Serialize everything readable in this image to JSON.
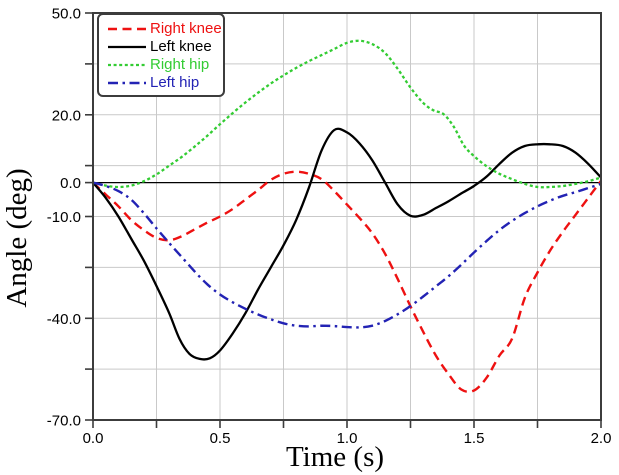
{
  "figure": {
    "background": "#ffffff",
    "frame_color": "#3c3c3c",
    "grid_color": "#c9c9c9",
    "zero_line_color": "#000000"
  },
  "chart_data": {
    "type": "line",
    "title": "",
    "xlabel": "Time (s)",
    "ylabel": "Angle (deg)",
    "xlim": [
      0,
      2
    ],
    "ylim": [
      -70,
      50
    ],
    "grid": "on",
    "legend_position": "top-left",
    "x_ticks": [
      {
        "v": 0,
        "label": "0.0"
      },
      {
        "v": 0.25,
        "label": ""
      },
      {
        "v": 0.5,
        "label": "0.5"
      },
      {
        "v": 0.75,
        "label": ""
      },
      {
        "v": 1,
        "label": "1.0"
      },
      {
        "v": 1.25,
        "label": ""
      },
      {
        "v": 1.5,
        "label": "1.5"
      },
      {
        "v": 1.75,
        "label": ""
      },
      {
        "v": 2,
        "label": "2.0"
      }
    ],
    "y_ticks": [
      {
        "v": 50,
        "label": "50.0"
      },
      {
        "v": 35,
        "label": ""
      },
      {
        "v": 20,
        "label": "20.0"
      },
      {
        "v": 5,
        "label": ""
      },
      {
        "v": 0,
        "label": "0.0"
      },
      {
        "v": -10,
        "label": "-10.0"
      },
      {
        "v": -25,
        "label": ""
      },
      {
        "v": -40,
        "label": "-40.0"
      },
      {
        "v": -55,
        "label": ""
      },
      {
        "v": -70,
        "label": "-70.0"
      }
    ],
    "x_grid": [
      0.25,
      0.5,
      0.75,
      1,
      1.25,
      1.5,
      1.75
    ],
    "y_grid": [
      35,
      20,
      5,
      -10,
      -25,
      -40,
      -55
    ],
    "zero_line": 0,
    "series": [
      {
        "name": "Right knee",
        "color": "#ee1111",
        "dash": "9 5.5",
        "width": 2.4,
        "points": [
          [
            0,
            0
          ],
          [
            0.05,
            -3.5
          ],
          [
            0.1,
            -7
          ],
          [
            0.15,
            -11
          ],
          [
            0.2,
            -14
          ],
          [
            0.25,
            -16.3
          ],
          [
            0.3,
            -17
          ],
          [
            0.35,
            -15.8
          ],
          [
            0.4,
            -13.8
          ],
          [
            0.45,
            -11.8
          ],
          [
            0.5,
            -10
          ],
          [
            0.55,
            -7.8
          ],
          [
            0.6,
            -5
          ],
          [
            0.65,
            -2.2
          ],
          [
            0.7,
            0.8
          ],
          [
            0.75,
            2.6
          ],
          [
            0.8,
            3.2
          ],
          [
            0.85,
            2.6
          ],
          [
            0.9,
            1
          ],
          [
            0.95,
            -2.5
          ],
          [
            1.0,
            -6.5
          ],
          [
            1.05,
            -10.5
          ],
          [
            1.1,
            -15
          ],
          [
            1.15,
            -21
          ],
          [
            1.2,
            -28.5
          ],
          [
            1.25,
            -36.5
          ],
          [
            1.3,
            -44
          ],
          [
            1.35,
            -51
          ],
          [
            1.4,
            -56.5
          ],
          [
            1.45,
            -61
          ],
          [
            1.5,
            -61.3
          ],
          [
            1.55,
            -57.5
          ],
          [
            1.6,
            -51
          ],
          [
            1.65,
            -46
          ],
          [
            1.7,
            -34
          ],
          [
            1.75,
            -26.5
          ],
          [
            1.8,
            -20
          ],
          [
            1.85,
            -14.5
          ],
          [
            1.9,
            -9.5
          ],
          [
            1.95,
            -4.5
          ],
          [
            2.0,
            0.5
          ]
        ]
      },
      {
        "name": "Left knee",
        "color": "#000000",
        "dash": "",
        "width": 2.3,
        "points": [
          [
            0,
            0
          ],
          [
            0.05,
            -4.5
          ],
          [
            0.1,
            -10
          ],
          [
            0.15,
            -16.5
          ],
          [
            0.2,
            -23
          ],
          [
            0.25,
            -30.5
          ],
          [
            0.3,
            -38.5
          ],
          [
            0.34,
            -46
          ],
          [
            0.38,
            -50.5
          ],
          [
            0.42,
            -52
          ],
          [
            0.46,
            -51.8
          ],
          [
            0.5,
            -49.5
          ],
          [
            0.55,
            -44.5
          ],
          [
            0.6,
            -38.5
          ],
          [
            0.65,
            -31.5
          ],
          [
            0.7,
            -25
          ],
          [
            0.75,
            -18.5
          ],
          [
            0.8,
            -11
          ],
          [
            0.85,
            -1.5
          ],
          [
            0.9,
            9.5
          ],
          [
            0.95,
            15.5
          ],
          [
            1.0,
            14.8
          ],
          [
            1.05,
            11.5
          ],
          [
            1.1,
            6.5
          ],
          [
            1.15,
            0
          ],
          [
            1.2,
            -6.5
          ],
          [
            1.25,
            -9.8
          ],
          [
            1.3,
            -9.5
          ],
          [
            1.35,
            -7.5
          ],
          [
            1.4,
            -5.5
          ],
          [
            1.45,
            -3.2
          ],
          [
            1.5,
            -1
          ],
          [
            1.55,
            1.8
          ],
          [
            1.6,
            5.5
          ],
          [
            1.65,
            8.8
          ],
          [
            1.7,
            10.8
          ],
          [
            1.75,
            11.3
          ],
          [
            1.8,
            11.3
          ],
          [
            1.85,
            10.8
          ],
          [
            1.9,
            8.8
          ],
          [
            1.95,
            5.5
          ],
          [
            2.0,
            1.5
          ]
        ]
      },
      {
        "name": "Right hip",
        "color": "#33cc33",
        "dash": "3 2.6",
        "width": 2.3,
        "points": [
          [
            0,
            0
          ],
          [
            0.05,
            -0.9
          ],
          [
            0.1,
            -1.3
          ],
          [
            0.15,
            -0.9
          ],
          [
            0.2,
            0.4
          ],
          [
            0.25,
            2.4
          ],
          [
            0.3,
            5
          ],
          [
            0.35,
            7.6
          ],
          [
            0.4,
            10.6
          ],
          [
            0.45,
            13.8
          ],
          [
            0.5,
            17.2
          ],
          [
            0.55,
            20.5
          ],
          [
            0.6,
            23.6
          ],
          [
            0.65,
            26.5
          ],
          [
            0.7,
            29.2
          ],
          [
            0.75,
            31.6
          ],
          [
            0.8,
            33.8
          ],
          [
            0.85,
            35.8
          ],
          [
            0.9,
            37.6
          ],
          [
            0.95,
            39.4
          ],
          [
            1.0,
            41.2
          ],
          [
            1.05,
            41.8
          ],
          [
            1.1,
            40.8
          ],
          [
            1.15,
            38.2
          ],
          [
            1.2,
            33.5
          ],
          [
            1.25,
            28
          ],
          [
            1.3,
            23.5
          ],
          [
            1.34,
            21.3
          ],
          [
            1.38,
            20.2
          ],
          [
            1.42,
            16.5
          ],
          [
            1.46,
            11
          ],
          [
            1.5,
            7.8
          ],
          [
            1.55,
            4.8
          ],
          [
            1.6,
            2.6
          ],
          [
            1.65,
            1
          ],
          [
            1.7,
            -0.4
          ],
          [
            1.75,
            -1.3
          ],
          [
            1.8,
            -1.3
          ],
          [
            1.85,
            -1
          ],
          [
            1.9,
            -0.4
          ],
          [
            1.95,
            0.4
          ],
          [
            2.0,
            1.5
          ]
        ]
      },
      {
        "name": "Left hip",
        "color": "#2323b4",
        "dash": "10 4.5 2.5 4.5",
        "width": 2.4,
        "points": [
          [
            0,
            0
          ],
          [
            0.05,
            -1
          ],
          [
            0.1,
            -2.5
          ],
          [
            0.15,
            -5
          ],
          [
            0.2,
            -9
          ],
          [
            0.25,
            -13.5
          ],
          [
            0.3,
            -17.8
          ],
          [
            0.35,
            -22
          ],
          [
            0.4,
            -26.2
          ],
          [
            0.45,
            -30
          ],
          [
            0.5,
            -33
          ],
          [
            0.55,
            -35.3
          ],
          [
            0.6,
            -37.2
          ],
          [
            0.65,
            -38.9
          ],
          [
            0.7,
            -40.3
          ],
          [
            0.75,
            -41.5
          ],
          [
            0.8,
            -42.2
          ],
          [
            0.85,
            -42.4
          ],
          [
            0.9,
            -42.2
          ],
          [
            0.95,
            -42.3
          ],
          [
            1.0,
            -42.6
          ],
          [
            1.05,
            -42.7
          ],
          [
            1.1,
            -42.2
          ],
          [
            1.15,
            -40.8
          ],
          [
            1.2,
            -38.8
          ],
          [
            1.25,
            -36.4
          ],
          [
            1.3,
            -33.6
          ],
          [
            1.35,
            -30.6
          ],
          [
            1.4,
            -27.6
          ],
          [
            1.45,
            -24.2
          ],
          [
            1.5,
            -20.6
          ],
          [
            1.55,
            -17.2
          ],
          [
            1.6,
            -14
          ],
          [
            1.65,
            -11.3
          ],
          [
            1.7,
            -9
          ],
          [
            1.75,
            -7
          ],
          [
            1.8,
            -5.3
          ],
          [
            1.85,
            -3.9
          ],
          [
            1.9,
            -2.8
          ],
          [
            1.95,
            -1.6
          ],
          [
            2.0,
            -0.4
          ]
        ]
      }
    ]
  },
  "legend": {
    "items": [
      {
        "label": "Right knee"
      },
      {
        "label": "Left knee"
      },
      {
        "label": "Right hip"
      },
      {
        "label": "Left hip"
      }
    ]
  }
}
